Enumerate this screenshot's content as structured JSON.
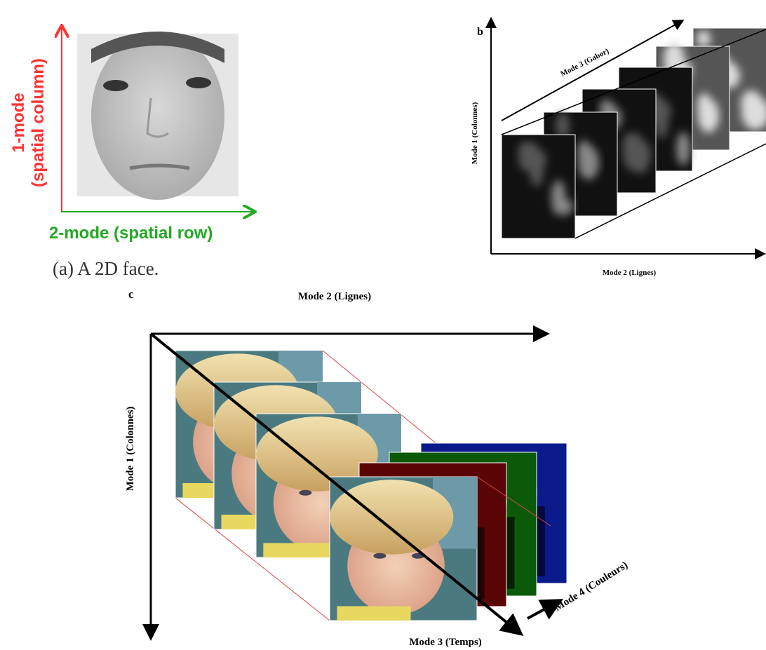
{
  "panel_a": {
    "y_axis_label": [
      "1-mode",
      "(spatial column)"
    ],
    "x_axis_label": "2-mode (spatial row)",
    "caption": "(a) A 2D face."
  },
  "panel_b": {
    "label": "b",
    "mode_3": "Mode 3 (Gabor)",
    "mode_1": "Mode 1 (Colonnes)",
    "mode_2": "Mode 2 (Lignes)"
  },
  "panel_c": {
    "label": "c",
    "mode_2": "Mode 2 (Lignes)",
    "mode_1": "Mode 1 (Colonnes)",
    "mode_3": "Mode 3 (Temps)",
    "mode_4": "Mode 4 (Couleurs)"
  }
}
